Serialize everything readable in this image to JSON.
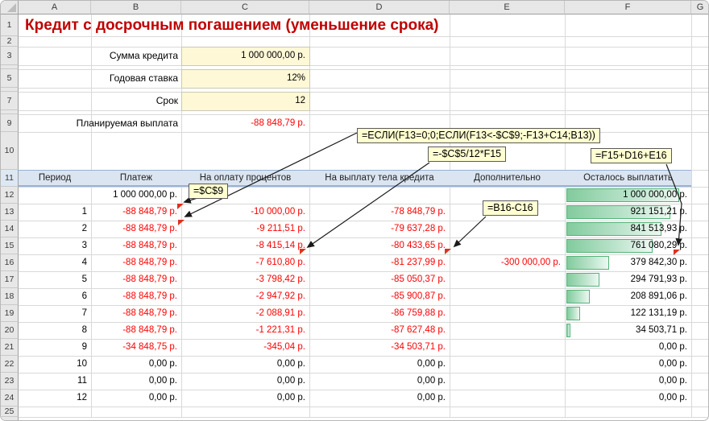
{
  "title": "Кредит с досрочным погашением (уменьшение срока)",
  "column_letters": [
    "A",
    "B",
    "C",
    "D",
    "E",
    "F",
    "G"
  ],
  "row_numbers": [
    "1",
    "2",
    "3",
    "4",
    "5",
    "6",
    "7",
    "8",
    "9",
    "10",
    "11",
    "12",
    "13",
    "14",
    "15",
    "16",
    "17",
    "18",
    "19",
    "20",
    "21",
    "22",
    "23",
    "24",
    "25"
  ],
  "inputs": [
    {
      "label": "Сумма кредита",
      "value": "1 000 000,00 р.",
      "highlighted": true
    },
    {
      "label": "Годовая ставка",
      "value": "12%",
      "highlighted": true
    },
    {
      "label": "Срок",
      "value": "12",
      "highlighted": true
    },
    {
      "label": "Планируемая выплата",
      "value": "-88 848,79 р.",
      "highlighted": false
    }
  ],
  "callouts": {
    "if_formula": "=ЕСЛИ(F13=0;0;ЕСЛИ(F13<-$C$9;-F13+C14;B13))",
    "interest_formula": "=-$C$5/12*F15",
    "remaining_formula": "=F15+D16+E16",
    "c9_ref": "=$C$9",
    "extra_formula": "=B16-C16"
  },
  "table": {
    "headers": [
      "Период",
      "Платеж",
      "На оплату процентов",
      "На выплату тела кредита",
      "Дополнительно",
      "Осталось выплатить"
    ],
    "bar_max": 1000000,
    "rows": [
      {
        "period": "",
        "payment": "1 000 000,00 р.",
        "interest": "",
        "principal": "",
        "extra": "",
        "remaining": "1 000 000,00 р.",
        "remaining_value": 1000000
      },
      {
        "period": "1",
        "payment": "-88 848,79 р.",
        "interest": "-10 000,00 р.",
        "principal": "-78 848,79 р.",
        "extra": "",
        "remaining": "921 151,21 р.",
        "remaining_value": 921151.21
      },
      {
        "period": "2",
        "payment": "-88 848,79 р.",
        "interest": "-9 211,51 р.",
        "principal": "-79 637,28 р.",
        "extra": "",
        "remaining": "841 513,93 р.",
        "remaining_value": 841513.93
      },
      {
        "period": "3",
        "payment": "-88 848,79 р.",
        "interest": "-8 415,14 р.",
        "principal": "-80 433,65 р.",
        "extra": "",
        "remaining": "761 080,29 р.",
        "remaining_value": 761080.29
      },
      {
        "period": "4",
        "payment": "-88 848,79 р.",
        "interest": "-7 610,80 р.",
        "principal": "-81 237,99 р.",
        "extra": "-300 000,00 р.",
        "remaining": "379 842,30 р.",
        "remaining_value": 379842.3
      },
      {
        "period": "5",
        "payment": "-88 848,79 р.",
        "interest": "-3 798,42 р.",
        "principal": "-85 050,37 р.",
        "extra": "",
        "remaining": "294 791,93 р.",
        "remaining_value": 294791.93
      },
      {
        "period": "6",
        "payment": "-88 848,79 р.",
        "interest": "-2 947,92 р.",
        "principal": "-85 900,87 р.",
        "extra": "",
        "remaining": "208 891,06 р.",
        "remaining_value": 208891.06
      },
      {
        "period": "7",
        "payment": "-88 848,79 р.",
        "interest": "-2 088,91 р.",
        "principal": "-86 759,88 р.",
        "extra": "",
        "remaining": "122 131,19 р.",
        "remaining_value": 122131.19
      },
      {
        "period": "8",
        "payment": "-88 848,79 р.",
        "interest": "-1 221,31 р.",
        "principal": "-87 627,48 р.",
        "extra": "",
        "remaining": "34 503,71 р.",
        "remaining_value": 34503.71
      },
      {
        "period": "9",
        "payment": "-34 848,75 р.",
        "interest": "-345,04 р.",
        "principal": "-34 503,71 р.",
        "extra": "",
        "remaining": "0,00 р.",
        "remaining_value": 0
      },
      {
        "period": "10",
        "payment": "0,00 р.",
        "interest": "0,00 р.",
        "principal": "0,00 р.",
        "extra": "",
        "remaining": "0,00 р.",
        "remaining_value": 0
      },
      {
        "period": "11",
        "payment": "0,00 р.",
        "interest": "0,00 р.",
        "principal": "0,00 р.",
        "extra": "",
        "remaining": "0,00 р.",
        "remaining_value": 0
      },
      {
        "period": "12",
        "payment": "0,00 р.",
        "interest": "0,00 р.",
        "principal": "0,00 р.",
        "extra": "",
        "remaining": "0,00 р.",
        "remaining_value": 0
      }
    ]
  },
  "colors": {
    "title_red": "#C00000",
    "negative_red": "#FF0000",
    "input_fill": "#FFF8D7",
    "callout_fill": "#FFFFD1",
    "header_band": "#DBE5F1",
    "band_border": "#95B3D7",
    "bar_border": "#54B378",
    "bar_green": "#82CB9D",
    "marker_red": "#E0301E"
  }
}
